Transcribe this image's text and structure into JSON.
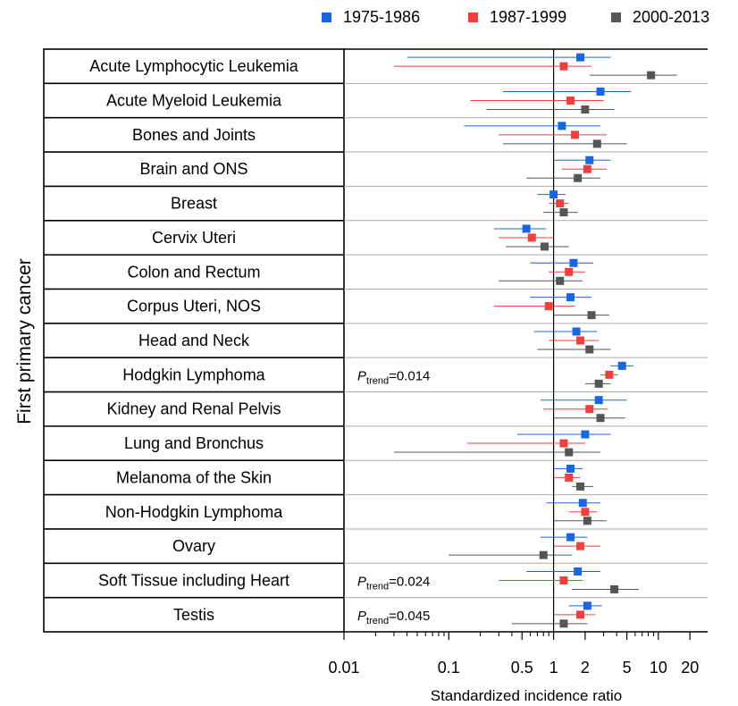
{
  "chart_data": {
    "type": "forest",
    "xlabel": "Standardized incidence ratio",
    "ylabel": "First primary cancer",
    "x_scale": "log10",
    "xlim": [
      0.01,
      20
    ],
    "major_ticks": [
      {
        "v": 0.01,
        "label": "0.01"
      },
      {
        "v": 0.1,
        "label": "0.1"
      },
      {
        "v": 0.5,
        "label": "0.5"
      },
      {
        "v": 1,
        "label": "1"
      },
      {
        "v": 2,
        "label": "2"
      },
      {
        "v": 5,
        "label": "5"
      },
      {
        "v": 10,
        "label": "10"
      },
      {
        "v": 20,
        "label": "20"
      }
    ],
    "minor_ticks": [
      0.02,
      0.03,
      0.04,
      0.05,
      0.06,
      0.07,
      0.08,
      0.09,
      0.2,
      0.3,
      0.4,
      0.6,
      0.7,
      0.8,
      0.9,
      3,
      4,
      6,
      7,
      8,
      9
    ],
    "reference_line": 1,
    "grid": "horizontal separators between categories",
    "legend_position": "top-right",
    "series": [
      {
        "name": "1975-1986",
        "color": "#1a66e0"
      },
      {
        "name": "1987-1999",
        "color": "#ef4040"
      },
      {
        "name": "2000-2013",
        "color": "#555555"
      }
    ],
    "categories": [
      {
        "name": "Acute Lymphocytic Leukemia",
        "points": [
          [
            1.8,
            0.04,
            3.5
          ],
          [
            1.25,
            0.03,
            2.3
          ],
          [
            8.5,
            2.2,
            15
          ]
        ]
      },
      {
        "name": "Acute Myeloid Leukemia",
        "points": [
          [
            2.8,
            0.33,
            5.5
          ],
          [
            1.45,
            0.16,
            3.0
          ],
          [
            2.0,
            0.23,
            3.8
          ]
        ]
      },
      {
        "name": "Bones and Joints",
        "points": [
          [
            1.2,
            0.14,
            2.8
          ],
          [
            1.6,
            0.3,
            3.2
          ],
          [
            2.6,
            0.33,
            5.0
          ]
        ]
      },
      {
        "name": "Brain and ONS",
        "points": [
          [
            2.2,
            1.0,
            3.5
          ],
          [
            2.1,
            1.2,
            3.2
          ],
          [
            1.7,
            0.55,
            2.8
          ]
        ]
      },
      {
        "name": "Breast",
        "points": [
          [
            1.0,
            0.7,
            1.3
          ],
          [
            1.15,
            0.9,
            1.4
          ],
          [
            1.25,
            0.8,
            1.7
          ]
        ]
      },
      {
        "name": "Cervix Uteri",
        "points": [
          [
            0.55,
            0.27,
            0.85
          ],
          [
            0.62,
            0.3,
            1.0
          ],
          [
            0.82,
            0.35,
            1.4
          ]
        ]
      },
      {
        "name": "Colon and Rectum",
        "points": [
          [
            1.55,
            0.6,
            2.4
          ],
          [
            1.4,
            0.9,
            2.0
          ],
          [
            1.15,
            0.3,
            1.9
          ]
        ]
      },
      {
        "name": "Corpus Uteri, NOS",
        "points": [
          [
            1.45,
            0.6,
            2.3
          ],
          [
            0.9,
            0.27,
            1.6
          ],
          [
            2.3,
            1.0,
            3.4
          ]
        ]
      },
      {
        "name": "Head and Neck",
        "points": [
          [
            1.65,
            0.65,
            2.6
          ],
          [
            1.8,
            0.9,
            2.7
          ],
          [
            2.2,
            0.7,
            3.5
          ]
        ]
      },
      {
        "name": "Hodgkin Lymphoma",
        "points": [
          [
            4.5,
            3.5,
            5.8
          ],
          [
            3.4,
            2.8,
            4.1
          ],
          [
            2.7,
            2.0,
            3.5
          ]
        ],
        "annotation": {
          "prefix": "P",
          "sub": "trend",
          "value": "=0.014"
        }
      },
      {
        "name": "Kidney and Renal Pelvis",
        "points": [
          [
            2.7,
            0.75,
            5.0
          ],
          [
            2.2,
            0.8,
            3.3
          ],
          [
            2.8,
            1.0,
            4.8
          ]
        ]
      },
      {
        "name": "Lung and Bronchus",
        "points": [
          [
            2.0,
            0.45,
            3.5
          ],
          [
            1.25,
            0.15,
            2.0
          ],
          [
            1.4,
            0.03,
            2.8
          ]
        ]
      },
      {
        "name": "Melanoma of the Skin",
        "points": [
          [
            1.45,
            1.0,
            1.9
          ],
          [
            1.4,
            1.0,
            1.8
          ],
          [
            1.8,
            1.5,
            2.4
          ]
        ]
      },
      {
        "name": "Non-Hodgkin Lymphoma",
        "points": [
          [
            1.9,
            0.85,
            2.8
          ],
          [
            2.0,
            1.4,
            2.6
          ],
          [
            2.1,
            1.0,
            3.2
          ]
        ]
      },
      {
        "name": "Ovary",
        "points": [
          [
            1.45,
            0.75,
            2.1
          ],
          [
            1.8,
            1.0,
            2.8
          ],
          [
            0.8,
            0.1,
            1.5
          ]
        ]
      },
      {
        "name": "Soft Tissue including Heart",
        "points": [
          [
            1.7,
            0.55,
            2.8
          ],
          [
            1.25,
            0.3,
            1.9
          ],
          [
            3.8,
            1.5,
            6.5
          ]
        ],
        "annotation": {
          "prefix": "P",
          "sub": "trend",
          "value": "=0.024"
        }
      },
      {
        "name": "Testis",
        "points": [
          [
            2.1,
            1.4,
            2.9
          ],
          [
            1.8,
            1.0,
            2.5
          ],
          [
            1.25,
            0.4,
            2.1
          ]
        ],
        "annotation": {
          "prefix": "P",
          "sub": "trend",
          "value": "=0.045"
        }
      }
    ]
  }
}
